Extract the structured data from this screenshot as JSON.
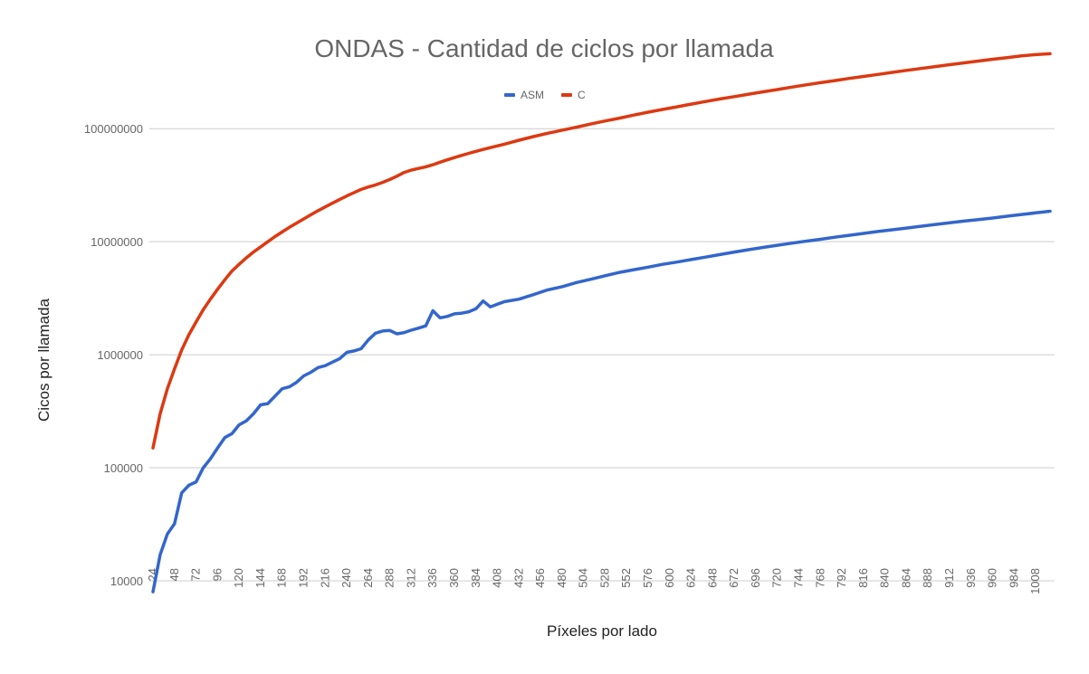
{
  "chart_data": {
    "type": "line",
    "title": "ONDAS - Cantidad de ciclos por llamada",
    "xlabel": "Píxeles por lado",
    "ylabel": "Cicos por llamada",
    "y_scale": "log",
    "ylim": [
      10000,
      600000000
    ],
    "xlim": [
      24,
      1024
    ],
    "y_ticks": [
      10000,
      100000,
      1000000,
      10000000,
      100000000
    ],
    "y_tick_labels": [
      "10000",
      "100000",
      "1000000",
      "10000000",
      "100000000"
    ],
    "x_ticks": [
      24,
      48,
      72,
      96,
      120,
      144,
      168,
      192,
      216,
      240,
      264,
      288,
      312,
      336,
      360,
      384,
      408,
      432,
      456,
      480,
      504,
      528,
      552,
      576,
      600,
      624,
      648,
      672,
      696,
      720,
      744,
      768,
      792,
      816,
      840,
      864,
      888,
      912,
      936,
      960,
      984,
      1008
    ],
    "x_tick_labels": [
      "24",
      "48",
      "72",
      "96",
      "120",
      "144",
      "168",
      "192",
      "216",
      "240",
      "264",
      "288",
      "312",
      "336",
      "360",
      "384",
      "408",
      "432",
      "456",
      "480",
      "504",
      "528",
      "552",
      "576",
      "600",
      "624",
      "648",
      "672",
      "696",
      "720",
      "744",
      "768",
      "792",
      "816",
      "840",
      "864",
      "888",
      "912",
      "936",
      "960",
      "984",
      "1008"
    ],
    "legend_position": "top",
    "grid": true,
    "series": [
      {
        "name": "ASM",
        "color": "#3366cc",
        "points": [
          [
            24,
            8000
          ],
          [
            32,
            17000
          ],
          [
            40,
            26000
          ],
          [
            48,
            32000
          ],
          [
            56,
            60000
          ],
          [
            64,
            70000
          ],
          [
            72,
            75000
          ],
          [
            80,
            100000
          ],
          [
            88,
            120000
          ],
          [
            96,
            150000
          ],
          [
            104,
            185000
          ],
          [
            112,
            200000
          ],
          [
            120,
            240000
          ],
          [
            128,
            260000
          ],
          [
            136,
            300000
          ],
          [
            144,
            360000
          ],
          [
            152,
            370000
          ],
          [
            160,
            430000
          ],
          [
            168,
            500000
          ],
          [
            176,
            520000
          ],
          [
            184,
            570000
          ],
          [
            192,
            650000
          ],
          [
            200,
            700000
          ],
          [
            208,
            770000
          ],
          [
            216,
            800000
          ],
          [
            224,
            860000
          ],
          [
            232,
            920000
          ],
          [
            240,
            1050000
          ],
          [
            248,
            1080000
          ],
          [
            256,
            1130000
          ],
          [
            264,
            1350000
          ],
          [
            272,
            1550000
          ],
          [
            280,
            1620000
          ],
          [
            288,
            1640000
          ],
          [
            296,
            1530000
          ],
          [
            304,
            1570000
          ],
          [
            312,
            1650000
          ],
          [
            320,
            1720000
          ],
          [
            328,
            1800000
          ],
          [
            336,
            2450000
          ],
          [
            344,
            2120000
          ],
          [
            352,
            2180000
          ],
          [
            360,
            2300000
          ],
          [
            368,
            2330000
          ],
          [
            376,
            2400000
          ],
          [
            384,
            2550000
          ],
          [
            392,
            2990000
          ],
          [
            400,
            2650000
          ],
          [
            408,
            2800000
          ],
          [
            416,
            2950000
          ],
          [
            432,
            3100000
          ],
          [
            448,
            3400000
          ],
          [
            464,
            3750000
          ],
          [
            480,
            4000000
          ],
          [
            496,
            4350000
          ],
          [
            512,
            4650000
          ],
          [
            528,
            5000000
          ],
          [
            544,
            5350000
          ],
          [
            560,
            5650000
          ],
          [
            576,
            5950000
          ],
          [
            592,
            6300000
          ],
          [
            608,
            6600000
          ],
          [
            624,
            6950000
          ],
          [
            640,
            7300000
          ],
          [
            656,
            7700000
          ],
          [
            672,
            8100000
          ],
          [
            688,
            8500000
          ],
          [
            704,
            8900000
          ],
          [
            720,
            9300000
          ],
          [
            736,
            9700000
          ],
          [
            752,
            10100000
          ],
          [
            768,
            10500000
          ],
          [
            784,
            10950000
          ],
          [
            800,
            11400000
          ],
          [
            816,
            11850000
          ],
          [
            832,
            12300000
          ],
          [
            848,
            12750000
          ],
          [
            864,
            13200000
          ],
          [
            880,
            13700000
          ],
          [
            896,
            14200000
          ],
          [
            912,
            14700000
          ],
          [
            928,
            15200000
          ],
          [
            944,
            15700000
          ],
          [
            960,
            16200000
          ],
          [
            976,
            16800000
          ],
          [
            992,
            17400000
          ],
          [
            1008,
            18000000
          ],
          [
            1024,
            18600000
          ]
        ]
      },
      {
        "name": "C",
        "color": "#dc3912",
        "points": [
          [
            24,
            150000
          ],
          [
            32,
            300000
          ],
          [
            40,
            500000
          ],
          [
            48,
            750000
          ],
          [
            56,
            1100000
          ],
          [
            64,
            1500000
          ],
          [
            72,
            1950000
          ],
          [
            80,
            2500000
          ],
          [
            88,
            3100000
          ],
          [
            96,
            3800000
          ],
          [
            104,
            4600000
          ],
          [
            112,
            5500000
          ],
          [
            120,
            6300000
          ],
          [
            128,
            7200000
          ],
          [
            136,
            8100000
          ],
          [
            144,
            9000000
          ],
          [
            152,
            10000000
          ],
          [
            160,
            11100000
          ],
          [
            168,
            12200000
          ],
          [
            176,
            13400000
          ],
          [
            184,
            14600000
          ],
          [
            192,
            15900000
          ],
          [
            200,
            17300000
          ],
          [
            208,
            18800000
          ],
          [
            216,
            20300000
          ],
          [
            224,
            21900000
          ],
          [
            232,
            23600000
          ],
          [
            240,
            25400000
          ],
          [
            248,
            27200000
          ],
          [
            256,
            29000000
          ],
          [
            264,
            30500000
          ],
          [
            272,
            31800000
          ],
          [
            280,
            33500000
          ],
          [
            288,
            35500000
          ],
          [
            296,
            38000000
          ],
          [
            304,
            41000000
          ],
          [
            312,
            43000000
          ],
          [
            320,
            44500000
          ],
          [
            328,
            46000000
          ],
          [
            336,
            48000000
          ],
          [
            344,
            50500000
          ],
          [
            352,
            53000000
          ],
          [
            360,
            55500000
          ],
          [
            368,
            58000000
          ],
          [
            376,
            60500000
          ],
          [
            384,
            63000000
          ],
          [
            392,
            65500000
          ],
          [
            400,
            68000000
          ],
          [
            416,
            73000000
          ],
          [
            432,
            79000000
          ],
          [
            448,
            85000000
          ],
          [
            464,
            91000000
          ],
          [
            480,
            97000000
          ],
          [
            496,
            103000000
          ],
          [
            512,
            110000000
          ],
          [
            528,
            117000000
          ],
          [
            544,
            124000000
          ],
          [
            560,
            132000000
          ],
          [
            576,
            140000000
          ],
          [
            592,
            148000000
          ],
          [
            608,
            156000000
          ],
          [
            624,
            165000000
          ],
          [
            640,
            174000000
          ],
          [
            656,
            183000000
          ],
          [
            672,
            192000000
          ],
          [
            688,
            202000000
          ],
          [
            704,
            212000000
          ],
          [
            720,
            222000000
          ],
          [
            736,
            233000000
          ],
          [
            752,
            244000000
          ],
          [
            768,
            255000000
          ],
          [
            784,
            266000000
          ],
          [
            800,
            278000000
          ],
          [
            816,
            290000000
          ],
          [
            832,
            302000000
          ],
          [
            848,
            315000000
          ],
          [
            864,
            328000000
          ],
          [
            880,
            341000000
          ],
          [
            896,
            354000000
          ],
          [
            912,
            368000000
          ],
          [
            928,
            382000000
          ],
          [
            944,
            396000000
          ],
          [
            960,
            411000000
          ],
          [
            976,
            425000000
          ],
          [
            992,
            440000000
          ],
          [
            1008,
            452000000
          ],
          [
            1024,
            460000000
          ]
        ]
      }
    ]
  }
}
